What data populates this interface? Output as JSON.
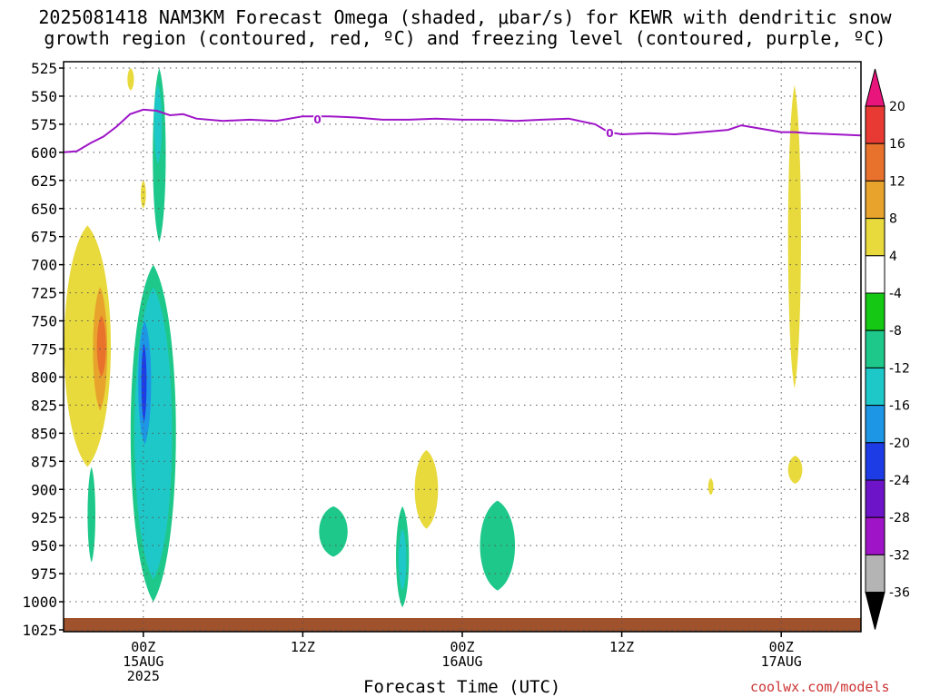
{
  "header": {
    "line1": "2025081418 NAM3KM Forecast Omega (shaded, μbar/s) for KEWR with dendritic snow",
    "line2": "growth region (contoured, red, ºC) and freezing level (contoured, purple, ºC)"
  },
  "footer": {
    "xtitle": "Forecast Time (UTC)",
    "credit": "coolwx.com/models"
  },
  "chart_data": {
    "type": "heatmap",
    "y_axis": {
      "ticks": [
        "525",
        "550",
        "575",
        "600",
        "625",
        "650",
        "675",
        "700",
        "725",
        "750",
        "775",
        "800",
        "825",
        "850",
        "875",
        "900",
        "925",
        "950",
        "975",
        "1000",
        "1025"
      ],
      "range": [
        525,
        1025
      ],
      "inverted": true
    },
    "x_axis": {
      "ticks": [
        {
          "hour": 6,
          "lines": [
            "00Z",
            "15AUG",
            "2025"
          ]
        },
        {
          "hour": 18,
          "lines": [
            "12Z"
          ]
        },
        {
          "hour": 30,
          "lines": [
            "00Z",
            "16AUG"
          ]
        },
        {
          "hour": 42,
          "lines": [
            "12Z"
          ]
        },
        {
          "hour": 54,
          "lines": [
            "00Z",
            "17AUG"
          ]
        }
      ],
      "range_hours": [
        0,
        60
      ]
    },
    "grid": true,
    "colorbar": {
      "labels": [
        "20",
        "16",
        "12",
        "8",
        "4",
        "-4",
        "-8",
        "-12",
        "-16",
        "-20",
        "-24",
        "-28",
        "-32",
        "-36"
      ],
      "colors": [
        "#e8157c",
        "#e83a32",
        "#e8722c",
        "#e8a32c",
        "#e8d93c",
        "#ffffff",
        "#14c814",
        "#1ec88a",
        "#1ec8c8",
        "#1e96e6",
        "#1e3ce6",
        "#6e14c8",
        "#a014c8",
        "#b4b4b4",
        "#000000"
      ],
      "levels": [
        24,
        20,
        16,
        12,
        8,
        4,
        -4,
        -8,
        -12,
        -16,
        -20,
        -24,
        -28,
        -32,
        -36,
        -40
      ]
    },
    "freezing_level": {
      "label": "0",
      "color": "#9e14c8",
      "points": [
        [
          0,
          600
        ],
        [
          1,
          599
        ],
        [
          2,
          592
        ],
        [
          3,
          586
        ],
        [
          4,
          577
        ],
        [
          5,
          566
        ],
        [
          6,
          562
        ],
        [
          7,
          563
        ],
        [
          8,
          567
        ],
        [
          9,
          566
        ],
        [
          10,
          570
        ],
        [
          12,
          572
        ],
        [
          14,
          571
        ],
        [
          16,
          572
        ],
        [
          18,
          568
        ],
        [
          20,
          568
        ],
        [
          22,
          569
        ],
        [
          24,
          571
        ],
        [
          26,
          571
        ],
        [
          28,
          570
        ],
        [
          30,
          571
        ],
        [
          32,
          571
        ],
        [
          34,
          572
        ],
        [
          36,
          571
        ],
        [
          38,
          570
        ],
        [
          40,
          575
        ],
        [
          41,
          582
        ],
        [
          42,
          584
        ],
        [
          44,
          583
        ],
        [
          46,
          584
        ],
        [
          48,
          582
        ],
        [
          50,
          580
        ],
        [
          51,
          576
        ],
        [
          52,
          578
        ],
        [
          54,
          582
        ],
        [
          55,
          582
        ],
        [
          56,
          583
        ],
        [
          58,
          584
        ],
        [
          60,
          585
        ]
      ]
    },
    "omega_features": [
      {
        "value": -8,
        "hours": [
          6.7,
          7.7
        ],
        "p": [
          525,
          680
        ]
      },
      {
        "value": -12,
        "hours": [
          6.8,
          7.4
        ],
        "p": [
          540,
          610
        ]
      },
      {
        "value": 4,
        "hours": [
          4.8,
          5.3
        ],
        "p": [
          525,
          545
        ]
      },
      {
        "value": 4,
        "hours": [
          5.8,
          6.2
        ],
        "p": [
          625,
          650
        ]
      },
      {
        "value": 4,
        "hours": [
          0,
          3.6
        ],
        "p": [
          665,
          880
        ]
      },
      {
        "value": 8,
        "hours": [
          2.2,
          3.3
        ],
        "p": [
          720,
          830
        ]
      },
      {
        "value": 12,
        "hours": [
          2.5,
          3.2
        ],
        "p": [
          745,
          800
        ]
      },
      {
        "value": -8,
        "hours": [
          5,
          8.5
        ],
        "p": [
          700,
          1000
        ]
      },
      {
        "value": -12,
        "hours": [
          5.3,
          8.2
        ],
        "p": [
          720,
          980
        ]
      },
      {
        "value": -16,
        "hours": [
          5.6,
          6.6
        ],
        "p": [
          750,
          860
        ]
      },
      {
        "value": -20,
        "hours": [
          5.85,
          6.25
        ],
        "p": [
          770,
          840
        ]
      },
      {
        "value": -8,
        "hours": [
          1.8,
          2.4
        ],
        "p": [
          880,
          965
        ]
      },
      {
        "value": -8,
        "hours": [
          19.2,
          21.4
        ],
        "p": [
          915,
          960
        ]
      },
      {
        "value": -8,
        "hours": [
          25,
          26
        ],
        "p": [
          915,
          1005
        ]
      },
      {
        "value": -12,
        "hours": [
          25.2,
          25.8
        ],
        "p": [
          935,
          990
        ]
      },
      {
        "value": 4,
        "hours": [
          26.4,
          28.2
        ],
        "p": [
          865,
          935
        ]
      },
      {
        "value": -8,
        "hours": [
          31.3,
          34
        ],
        "p": [
          910,
          990
        ]
      },
      {
        "value": 4,
        "hours": [
          54.5,
          55.5
        ],
        "p": [
          540,
          810
        ]
      },
      {
        "value": 4,
        "hours": [
          54.5,
          55.6
        ],
        "p": [
          870,
          895
        ]
      },
      {
        "value": 4,
        "hours": [
          48.5,
          48.9
        ],
        "p": [
          890,
          905
        ]
      }
    ],
    "terrain_color": "#a0522d"
  }
}
